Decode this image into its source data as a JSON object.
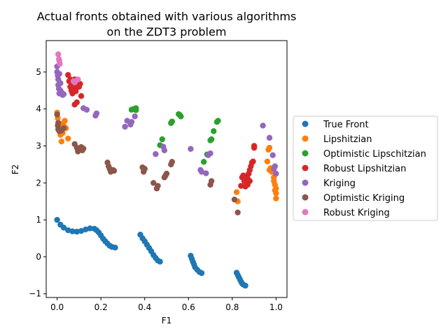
{
  "chart_data": {
    "type": "scatter",
    "title": [
      "Actual fronts obtained with various algorithms",
      "on the ZDT3 problem"
    ],
    "xlabel": "F1",
    "ylabel": "F2",
    "xlim": [
      -0.05,
      1.05
    ],
    "ylim": [
      -1.1,
      5.85
    ],
    "xticks": [
      0.0,
      0.2,
      0.4,
      0.6,
      0.8,
      1.0
    ],
    "xtick_labels": [
      "0.0",
      "0.2",
      "0.4",
      "0.6",
      "0.8",
      "1.0"
    ],
    "yticks": [
      -1,
      0,
      1,
      2,
      3,
      4,
      5
    ],
    "ytick_labels": [
      "−1",
      "0",
      "1",
      "2",
      "3",
      "4",
      "5"
    ],
    "legend_position": "outside-right",
    "series": [
      {
        "name": "True Front",
        "color": "#1f77b4",
        "points": [
          [
            0.0,
            1.0
          ],
          [
            0.015,
            0.87
          ],
          [
            0.03,
            0.79
          ],
          [
            0.05,
            0.72
          ],
          [
            0.07,
            0.69
          ],
          [
            0.09,
            0.68
          ],
          [
            0.11,
            0.7
          ],
          [
            0.13,
            0.74
          ],
          [
            0.15,
            0.77
          ],
          [
            0.17,
            0.76
          ],
          [
            0.18,
            0.72
          ],
          [
            0.19,
            0.66
          ],
          [
            0.2,
            0.58
          ],
          [
            0.21,
            0.49
          ],
          [
            0.22,
            0.42
          ],
          [
            0.23,
            0.36
          ],
          [
            0.24,
            0.3
          ],
          [
            0.25,
            0.27
          ],
          [
            0.265,
            0.25
          ],
          [
            0.38,
            0.6
          ],
          [
            0.39,
            0.5
          ],
          [
            0.4,
            0.42
          ],
          [
            0.41,
            0.33
          ],
          [
            0.42,
            0.24
          ],
          [
            0.43,
            0.15
          ],
          [
            0.44,
            0.05
          ],
          [
            0.45,
            -0.03
          ],
          [
            0.46,
            -0.1
          ],
          [
            0.47,
            -0.13
          ],
          [
            0.61,
            0.03
          ],
          [
            0.615,
            -0.05
          ],
          [
            0.62,
            -0.13
          ],
          [
            0.625,
            -0.2
          ],
          [
            0.63,
            -0.28
          ],
          [
            0.64,
            -0.35
          ],
          [
            0.65,
            -0.41
          ],
          [
            0.66,
            -0.44
          ],
          [
            0.82,
            -0.43
          ],
          [
            0.825,
            -0.49
          ],
          [
            0.83,
            -0.55
          ],
          [
            0.835,
            -0.61
          ],
          [
            0.84,
            -0.67
          ],
          [
            0.845,
            -0.72
          ],
          [
            0.85,
            -0.75
          ],
          [
            0.86,
            -0.78
          ]
        ]
      },
      {
        "name": "Lipshitzian",
        "color": "#ff7f0e",
        "points": [
          [
            0.0,
            3.9
          ],
          [
            0.003,
            3.75
          ],
          [
            0.005,
            3.62
          ],
          [
            0.008,
            3.5
          ],
          [
            0.01,
            3.42
          ],
          [
            0.015,
            3.3
          ],
          [
            0.02,
            3.12
          ],
          [
            0.025,
            3.35
          ],
          [
            0.03,
            3.55
          ],
          [
            0.035,
            3.68
          ],
          [
            0.04,
            3.48
          ],
          [
            0.05,
            3.2
          ],
          [
            0.015,
            3.6
          ],
          [
            0.02,
            3.45
          ],
          [
            0.82,
            1.75
          ],
          [
            0.825,
            1.5
          ],
          [
            0.96,
            2.58
          ],
          [
            0.965,
            2.9
          ],
          [
            0.97,
            2.95
          ],
          [
            0.97,
            2.35
          ],
          [
            0.975,
            2.4
          ],
          [
            0.98,
            2.3
          ],
          [
            0.99,
            2.05
          ],
          [
            0.995,
            1.95
          ],
          [
            1.0,
            1.85
          ],
          [
            1.0,
            1.72
          ],
          [
            1.0,
            1.58
          ],
          [
            0.995,
            1.8
          ],
          [
            0.99,
            2.15
          ]
        ]
      },
      {
        "name": "Optimistic Lipschitzian",
        "color": "#2ca02c",
        "points": [
          [
            0.34,
            3.98
          ],
          [
            0.35,
            4.0
          ],
          [
            0.36,
            3.97
          ],
          [
            0.36,
            4.02
          ],
          [
            0.47,
            3.02
          ],
          [
            0.48,
            3.18
          ],
          [
            0.52,
            3.62
          ],
          [
            0.525,
            3.66
          ],
          [
            0.555,
            3.86
          ],
          [
            0.56,
            3.84
          ],
          [
            0.565,
            3.8
          ],
          [
            0.67,
            2.57
          ],
          [
            0.685,
            2.77
          ],
          [
            0.7,
            3.15
          ],
          [
            0.705,
            3.18
          ],
          [
            0.715,
            3.4
          ],
          [
            0.73,
            3.65
          ],
          [
            0.735,
            3.68
          ]
        ]
      },
      {
        "name": "Robust Lipshitzian",
        "color": "#d62728",
        "points": [
          [
            0.05,
            4.92
          ],
          [
            0.055,
            4.75
          ],
          [
            0.06,
            4.6
          ],
          [
            0.065,
            4.5
          ],
          [
            0.07,
            4.42
          ],
          [
            0.075,
            4.68
          ],
          [
            0.08,
            4.55
          ],
          [
            0.085,
            4.48
          ],
          [
            0.09,
            4.72
          ],
          [
            0.08,
            4.12
          ],
          [
            0.09,
            4.18
          ],
          [
            0.1,
            4.6
          ],
          [
            0.105,
            4.68
          ],
          [
            0.11,
            4.35
          ],
          [
            0.06,
            4.8
          ],
          [
            0.07,
            4.75
          ],
          [
            0.08,
            4.8
          ],
          [
            0.095,
            4.6
          ],
          [
            0.84,
            1.92
          ],
          [
            0.845,
            2.15
          ],
          [
            0.85,
            2.2
          ],
          [
            0.855,
            2.05
          ],
          [
            0.86,
            1.9
          ],
          [
            0.865,
            1.98
          ],
          [
            0.87,
            2.12
          ],
          [
            0.875,
            2.25
          ],
          [
            0.88,
            2.35
          ],
          [
            0.885,
            2.45
          ],
          [
            0.89,
            2.55
          ],
          [
            0.895,
            2.58
          ],
          [
            0.9,
            2.95
          ],
          [
            0.9,
            3.0
          ],
          [
            0.86,
            2.18
          ],
          [
            0.87,
            1.95
          ],
          [
            0.88,
            2.05
          ]
        ]
      },
      {
        "name": "Kriging",
        "color": "#9467bd",
        "points": [
          [
            0.0,
            5.15
          ],
          [
            0.0,
            5.0
          ],
          [
            0.003,
            4.9
          ],
          [
            0.005,
            4.8
          ],
          [
            0.005,
            4.65
          ],
          [
            0.008,
            4.55
          ],
          [
            0.01,
            4.42
          ],
          [
            0.015,
            4.5
          ],
          [
            0.02,
            4.45
          ],
          [
            0.025,
            4.38
          ],
          [
            0.03,
            4.4
          ],
          [
            0.01,
            4.95
          ],
          [
            0.015,
            4.7
          ],
          [
            0.12,
            4.02
          ],
          [
            0.135,
            3.98
          ],
          [
            0.175,
            3.82
          ],
          [
            0.18,
            3.88
          ],
          [
            0.31,
            3.52
          ],
          [
            0.32,
            3.68
          ],
          [
            0.335,
            3.58
          ],
          [
            0.34,
            3.65
          ],
          [
            0.355,
            3.8
          ],
          [
            0.45,
            2.78
          ],
          [
            0.485,
            2.98
          ],
          [
            0.49,
            2.88
          ],
          [
            0.61,
            2.92
          ],
          [
            0.655,
            2.35
          ],
          [
            0.66,
            2.3
          ],
          [
            0.68,
            2.26
          ],
          [
            0.7,
            2.8
          ],
          [
            0.69,
            2.75
          ],
          [
            0.94,
            3.55
          ],
          [
            0.97,
            3.22
          ],
          [
            0.985,
            2.75
          ],
          [
            0.995,
            2.45
          ],
          [
            1.0,
            2.25
          ],
          [
            0.99,
            2.38
          ]
        ]
      },
      {
        "name": "Optimistic Kriging",
        "color": "#8c564b",
        "points": [
          [
            0.0,
            3.85
          ],
          [
            0.003,
            3.55
          ],
          [
            0.005,
            3.45
          ],
          [
            0.01,
            3.4
          ],
          [
            0.02,
            3.42
          ],
          [
            0.03,
            3.48
          ],
          [
            0.005,
            3.62
          ],
          [
            0.08,
            3.05
          ],
          [
            0.09,
            2.95
          ],
          [
            0.095,
            2.85
          ],
          [
            0.1,
            2.9
          ],
          [
            0.11,
            2.97
          ],
          [
            0.115,
            2.88
          ],
          [
            0.12,
            2.93
          ],
          [
            0.23,
            2.55
          ],
          [
            0.235,
            2.45
          ],
          [
            0.24,
            2.38
          ],
          [
            0.245,
            2.3
          ],
          [
            0.255,
            2.35
          ],
          [
            0.26,
            2.33
          ],
          [
            0.39,
            2.42
          ],
          [
            0.395,
            2.3
          ],
          [
            0.4,
            2.38
          ],
          [
            0.44,
            2.0
          ],
          [
            0.455,
            1.85
          ],
          [
            0.46,
            1.92
          ],
          [
            0.49,
            2.15
          ],
          [
            0.495,
            2.2
          ],
          [
            0.5,
            2.25
          ],
          [
            0.52,
            2.5
          ],
          [
            0.525,
            2.57
          ],
          [
            0.7,
            1.95
          ],
          [
            0.705,
            2.05
          ],
          [
            0.81,
            1.55
          ],
          [
            0.825,
            1.2
          ]
        ]
      },
      {
        "name": "Robust Kriging",
        "color": "#e377c2",
        "points": [
          [
            0.005,
            5.48
          ],
          [
            0.01,
            5.3
          ],
          [
            0.012,
            5.22
          ],
          [
            0.008,
            5.35
          ],
          [
            0.075,
            4.75
          ],
          [
            0.08,
            4.72
          ],
          [
            0.095,
            4.8
          ]
        ]
      }
    ]
  }
}
